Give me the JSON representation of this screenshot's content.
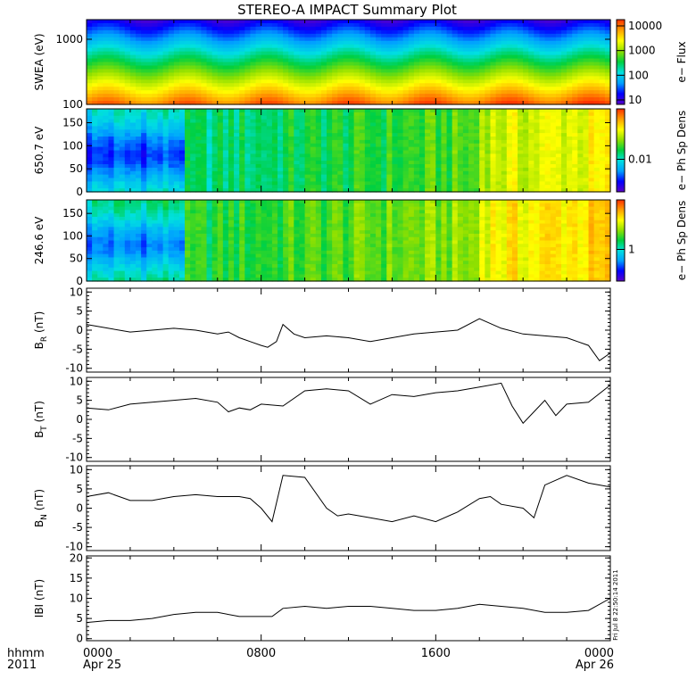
{
  "title": "STEREO-A IMPACT Summary Plot",
  "colors": {
    "line": "#000000",
    "rainbow_stops": [
      "#5a00c8",
      "#0000ff",
      "#00a0ff",
      "#00e0e0",
      "#00d040",
      "#90e000",
      "#ffff00",
      "#ffa000",
      "#ff3000"
    ]
  },
  "chart_data": [
    {
      "type": "heatmap",
      "ylabel": "SWEA (eV)",
      "yscale": "log",
      "ylim": [
        100,
        2000
      ],
      "yticks": [
        {
          "v": 1000,
          "label": "1000"
        },
        {
          "v": 100,
          "label": "100"
        }
      ],
      "colorbar": {
        "label": "e− Flux",
        "scale": "log",
        "ticks": [
          "10",
          "100",
          "1000",
          "10000"
        ]
      }
    },
    {
      "type": "heatmap",
      "ylabel": "650.7 eV",
      "ylim": [
        0,
        180
      ],
      "yticks": [
        {
          "v": 150,
          "label": "150"
        },
        {
          "v": 100,
          "label": "100"
        },
        {
          "v": 50,
          "label": "50"
        },
        {
          "v": 0,
          "label": "0"
        }
      ],
      "colorbar": {
        "label": "e− Ph Sp Dens",
        "scale": "log",
        "ticks": [
          "0.01"
        ]
      }
    },
    {
      "type": "heatmap",
      "ylabel": "246.6 eV",
      "ylim": [
        0,
        180
      ],
      "yticks": [
        {
          "v": 150,
          "label": "150"
        },
        {
          "v": 100,
          "label": "100"
        },
        {
          "v": 50,
          "label": "50"
        },
        {
          "v": 0,
          "label": "0"
        }
      ],
      "colorbar": {
        "label": "e− Ph Sp Dens",
        "scale": "log",
        "ticks": [
          "1"
        ]
      }
    },
    {
      "type": "line",
      "ylabel": "B",
      "ysub": "R",
      "yunit": "(nT)",
      "ylim": [
        -11,
        11
      ],
      "yticks": [
        "10",
        "5",
        "0",
        "-5",
        "-10"
      ],
      "x": [
        0,
        1,
        2,
        3,
        4,
        5,
        5.5,
        6,
        6.5,
        7,
        7.5,
        8,
        8.3,
        8.7,
        9,
        9.5,
        10,
        11,
        12,
        13,
        14,
        15,
        16,
        17,
        18,
        19,
        20,
        21,
        22,
        22.5,
        23,
        23.5,
        24
      ],
      "values": [
        1.5,
        0.5,
        -0.5,
        0,
        0.5,
        0,
        -0.5,
        -1,
        -0.5,
        -2,
        -3,
        -4,
        -4.5,
        -3,
        1.5,
        -1,
        -2,
        -1.5,
        -2,
        -3,
        -2,
        -1,
        -0.5,
        0,
        3,
        0.5,
        -1,
        -1.5,
        -2,
        -3,
        -4,
        -8,
        -6
      ]
    },
    {
      "type": "line",
      "ylabel": "B",
      "ysub": "T",
      "yunit": "(nT)",
      "ylim": [
        -11,
        11
      ],
      "yticks": [
        "10",
        "5",
        "0",
        "-5",
        "-10"
      ],
      "x": [
        0,
        1,
        2,
        3,
        4,
        5,
        6,
        6.5,
        7,
        7.5,
        8,
        9,
        10,
        11,
        12,
        13,
        14,
        15,
        16,
        17,
        18,
        19,
        19.5,
        20,
        20.5,
        21,
        21.5,
        22,
        23,
        24
      ],
      "values": [
        3,
        2.5,
        4,
        4.5,
        5,
        5.5,
        4.5,
        2,
        3,
        2.5,
        4,
        3.5,
        7.5,
        8,
        7.5,
        4,
        6.5,
        6,
        7,
        7.5,
        8.5,
        9.5,
        3.5,
        -1,
        2,
        5,
        1,
        4,
        4.5,
        9
      ]
    },
    {
      "type": "line",
      "ylabel": "B",
      "ysub": "N",
      "yunit": "(nT)",
      "ylim": [
        -11,
        11
      ],
      "yticks": [
        "10",
        "5",
        "0",
        "-5",
        "-10"
      ],
      "x": [
        0,
        1,
        2,
        3,
        4,
        5,
        6,
        7,
        7.5,
        8,
        8.5,
        9,
        10,
        11,
        11.5,
        12,
        13,
        14,
        15,
        16,
        17,
        18,
        18.5,
        19,
        20,
        20.5,
        21,
        22,
        23,
        24
      ],
      "values": [
        3,
        4,
        2,
        2,
        3,
        3.5,
        3,
        3,
        2.5,
        0,
        -3.5,
        8.5,
        8,
        0,
        -2,
        -1.5,
        -2.5,
        -3.5,
        -2,
        -3.5,
        -1,
        2.5,
        3,
        1,
        0,
        -2.5,
        6,
        8.5,
        6.5,
        5.5
      ]
    },
    {
      "type": "line",
      "ylabel": "IBI",
      "yunit": "(nT)",
      "ylim": [
        -0.5,
        20.5
      ],
      "yticks": [
        "20",
        "15",
        "10",
        "5",
        "0"
      ],
      "x": [
        0,
        1,
        2,
        3,
        4,
        5,
        6,
        7,
        8,
        8.5,
        9,
        10,
        11,
        12,
        13,
        14,
        15,
        16,
        17,
        18,
        19,
        20,
        21,
        22,
        23,
        24
      ],
      "values": [
        4,
        4.5,
        4.5,
        5,
        6,
        6.5,
        6.5,
        5.5,
        5.5,
        5.5,
        7.5,
        8,
        7.5,
        8,
        8,
        7.5,
        7,
        7,
        7.5,
        8.5,
        8,
        7.5,
        6.5,
        6.5,
        7,
        10
      ]
    }
  ],
  "xaxis": {
    "row1_left": "hhmm",
    "row2_left": "2011",
    "ticks": [
      {
        "hour": 0,
        "label": "0000",
        "date": "Apr 25"
      },
      {
        "hour": 8,
        "label": "0800",
        "date": ""
      },
      {
        "hour": 16,
        "label": "1600",
        "date": ""
      },
      {
        "hour": 24,
        "label": "0000",
        "date": "Apr 26"
      }
    ]
  },
  "stamp": "Fri Jul  8 22:50:14 2011"
}
